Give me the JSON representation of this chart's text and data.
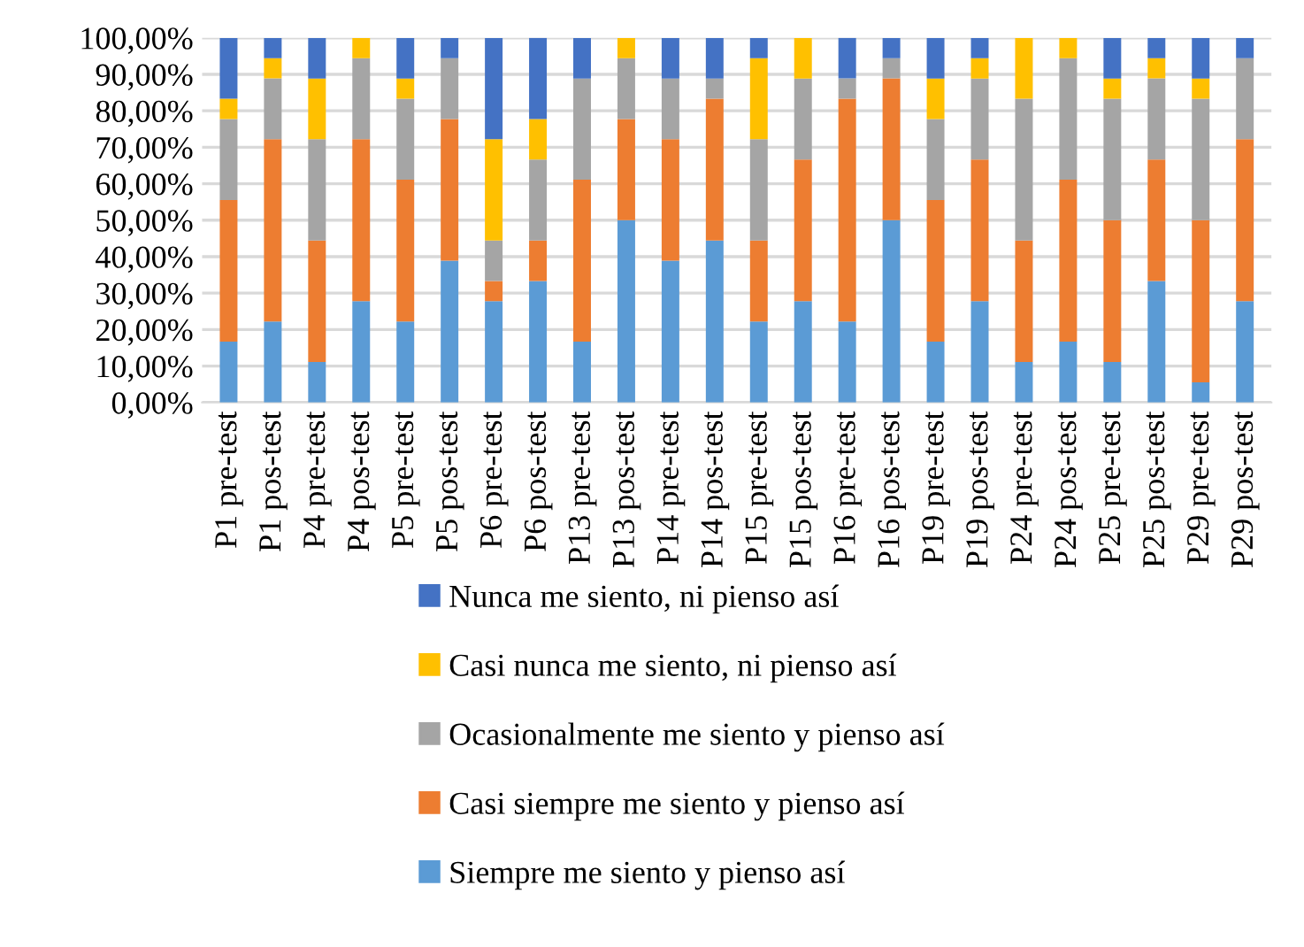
{
  "chart_data": {
    "type": "bar",
    "stacked": true,
    "categories": [
      "P1 pre-test",
      "P1 pos-test",
      "P4 pre-test",
      "P4 pos-test",
      "P5 pre-test",
      "P5 pos-test",
      "P6 pre-test",
      "P6 pos-test",
      "P13 pre-test",
      "P13 pos-test",
      "P14 pre-test",
      "P14 pos-test",
      "P15 pre-test",
      "P15 pos-test",
      "P16 pre-test",
      "P16 pos-test",
      "P19 pre-test",
      "P19 pos-test",
      "P24 pre-test",
      "P24 pos-test",
      "P25 pre-test",
      "P25 pos-test",
      "P29 pre-test",
      "P29 pos-test"
    ],
    "series": [
      {
        "name": "Siempre me siento y pienso así",
        "color": "#5b9bd5",
        "values": [
          16.66,
          22.22,
          11.11,
          27.77,
          22.22,
          38.88,
          27.77,
          33.33,
          16.66,
          50,
          38.88,
          44.44,
          22.22,
          27.77,
          22.22,
          50,
          16.66,
          27.77,
          11.11,
          16.66,
          11.11,
          33.33,
          5.55,
          27.77
        ]
      },
      {
        "name": "Casi siempre me siento y pienso así",
        "color": "#ed7d31",
        "values": [
          38.88,
          50,
          33.33,
          44.44,
          38.88,
          38.88,
          5.55,
          11.11,
          44.44,
          27.77,
          33.33,
          38.88,
          22.22,
          38.88,
          61.11,
          38.88,
          38.88,
          38.88,
          33.33,
          44.44,
          38.88,
          33.33,
          44.44,
          44.44
        ]
      },
      {
        "name": "Ocasionalmente me siento y pienso así",
        "color": "#a5a5a5",
        "values": [
          22.22,
          16.66,
          27.77,
          22.22,
          22.22,
          16.66,
          11.11,
          22.22,
          27.77,
          16.66,
          16.66,
          5.55,
          27.77,
          22.22,
          5.55,
          5.55,
          22.22,
          22.22,
          38.88,
          33.33,
          33.33,
          22.22,
          33.33,
          22.22
        ]
      },
      {
        "name": "Casi nunca me siento, ni pienso así",
        "color": "#ffc000",
        "values": [
          5.55,
          5.55,
          16.66,
          5.55,
          5.55,
          0,
          27.77,
          11.11,
          0,
          5.55,
          0,
          0,
          22.22,
          11.11,
          0,
          0,
          11.11,
          5.55,
          16.66,
          5.55,
          5.55,
          5.55,
          5.55,
          0
        ]
      },
      {
        "name": "Nunca me siento, ni pienso así",
        "color": "#4472c4",
        "values": [
          16.66,
          5.55,
          11.11,
          0,
          11.11,
          5.55,
          27.77,
          22.22,
          11.11,
          0,
          11.11,
          11.11,
          5.55,
          0,
          11.11,
          5.55,
          11.11,
          5.55,
          0,
          0,
          11.11,
          5.55,
          11.11,
          5.55
        ]
      }
    ],
    "ylim": [
      0,
      100
    ],
    "yticks": [
      {
        "value": 0,
        "label": "0,00%"
      },
      {
        "value": 10,
        "label": "10,00%"
      },
      {
        "value": 20,
        "label": "20,00%"
      },
      {
        "value": 30,
        "label": "30,00%"
      },
      {
        "value": 40,
        "label": "40,00%"
      },
      {
        "value": 50,
        "label": "50,00%"
      },
      {
        "value": 60,
        "label": "60,00%"
      },
      {
        "value": 70,
        "label": "70,00%"
      },
      {
        "value": 80,
        "label": "80,00%"
      },
      {
        "value": 90,
        "label": "90,00%"
      },
      {
        "value": 100,
        "label": "100,00%"
      }
    ],
    "grid": "y",
    "legend": "bottom"
  }
}
